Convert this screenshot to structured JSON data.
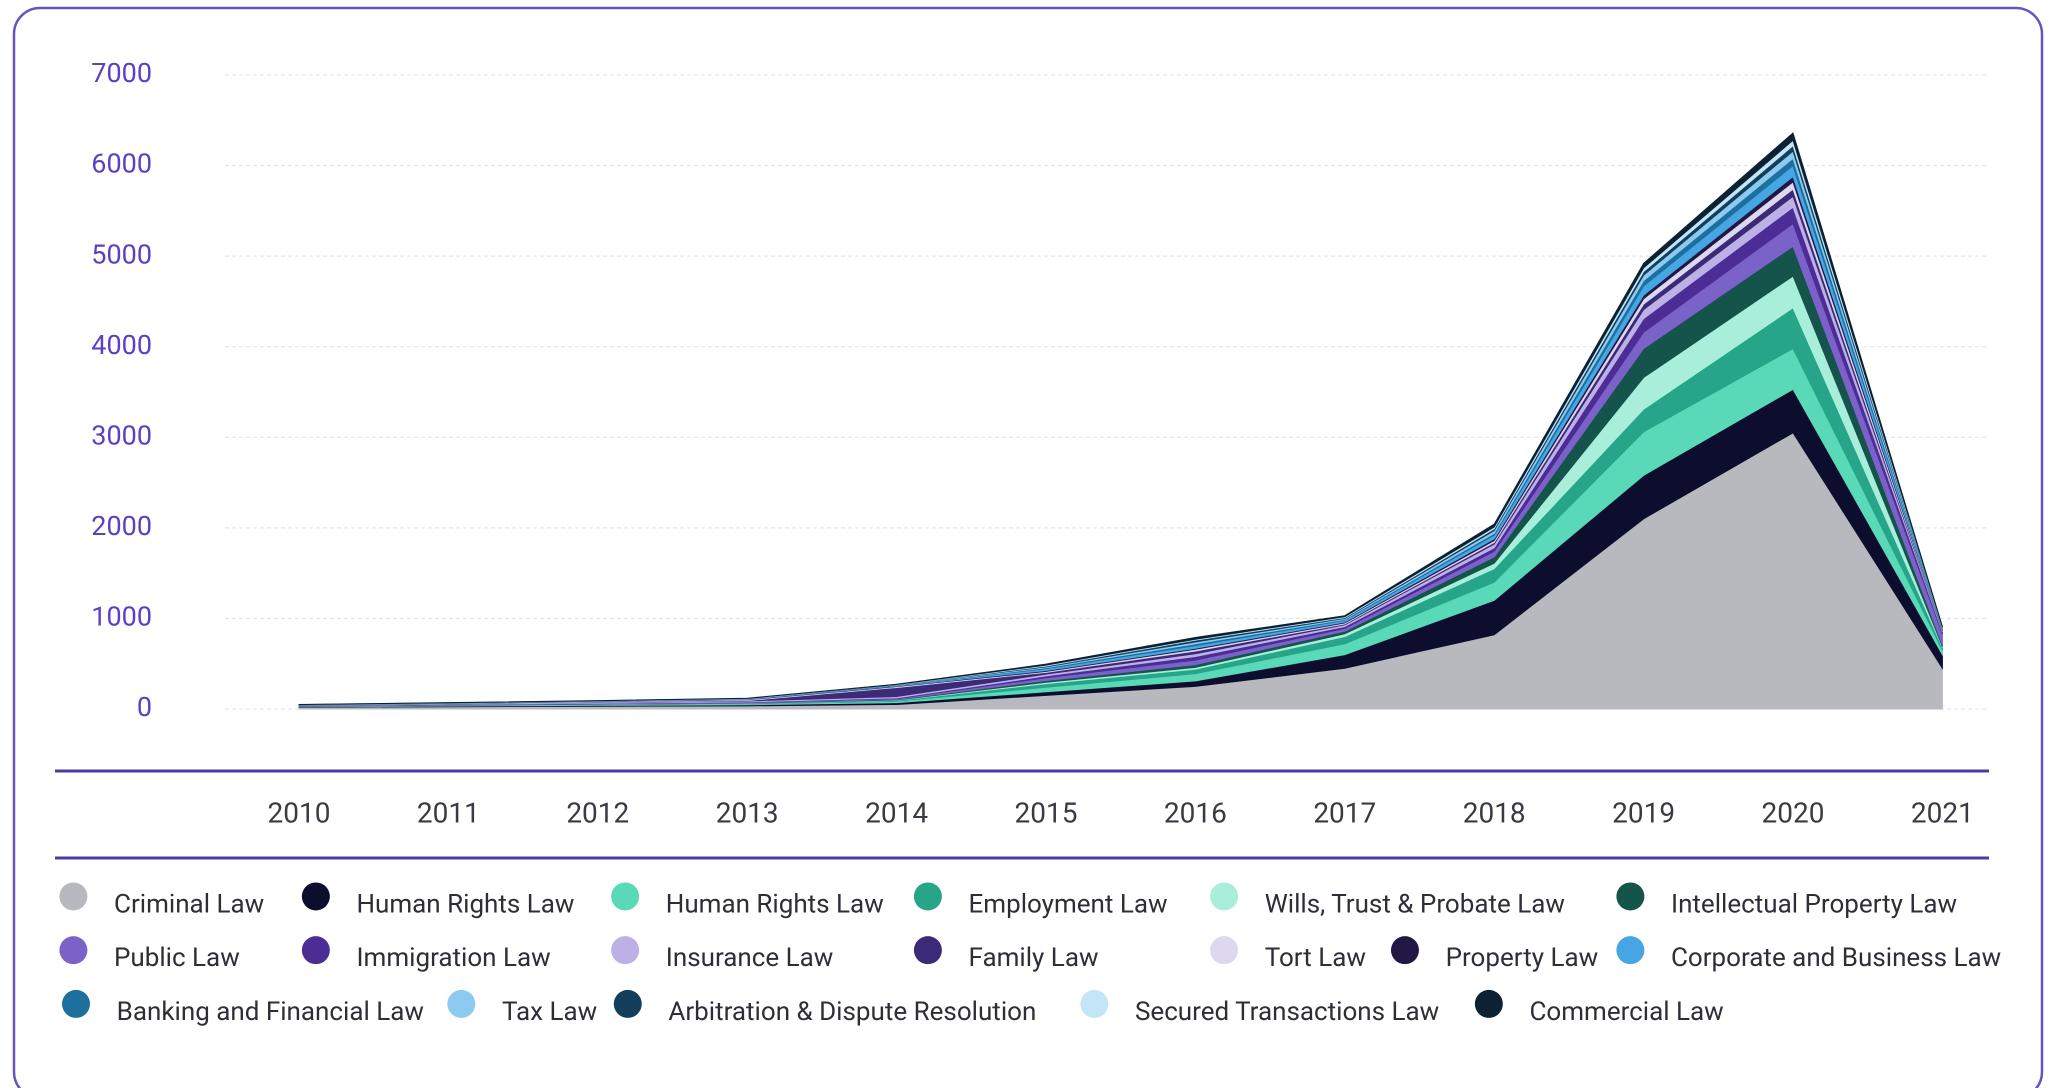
{
  "chart_data": {
    "type": "stacked_area",
    "categories": [
      "2010",
      "2011",
      "2012",
      "2013",
      "2014",
      "2015",
      "2016",
      "2017",
      "2018",
      "2019",
      "2020",
      "2021"
    ],
    "ylim": [
      0,
      7000
    ],
    "yticks": [
      0,
      1000,
      2000,
      3000,
      4000,
      5000,
      6000,
      7000
    ],
    "grid": true,
    "series": [
      {
        "name": "Criminal Law",
        "color": "#b8b8bf",
        "values": [
          20,
          25,
          30,
          35,
          50,
          150,
          250,
          450,
          820,
          2100,
          3050,
          450
        ]
      },
      {
        "name": "Human Rights Law",
        "color": "#0d0d2e",
        "values": [
          5,
          8,
          10,
          12,
          20,
          40,
          60,
          150,
          380,
          480,
          480,
          150
        ]
      },
      {
        "name": "Human Rights Law",
        "color": "#5ad9b8",
        "values": [
          3,
          5,
          6,
          8,
          15,
          50,
          80,
          120,
          200,
          480,
          450,
          50
        ]
      },
      {
        "name": "Employment Law",
        "color": "#26a588",
        "values": [
          2,
          3,
          4,
          5,
          10,
          40,
          50,
          80,
          150,
          250,
          450,
          30
        ]
      },
      {
        "name": "Wills, Trust & Probate Law",
        "color": "#a8eedb",
        "values": [
          1,
          2,
          2,
          3,
          5,
          15,
          20,
          30,
          60,
          350,
          350,
          10
        ]
      },
      {
        "name": "Intellectual Property Law",
        "color": "#15544a",
        "values": [
          1,
          2,
          2,
          3,
          5,
          20,
          30,
          30,
          70,
          320,
          330,
          20
        ]
      },
      {
        "name": "Public Law",
        "color": "#7b62c9",
        "values": [
          3,
          4,
          6,
          8,
          10,
          30,
          50,
          30,
          60,
          180,
          250,
          120
        ]
      },
      {
        "name": "Immigration Law",
        "color": "#4c2d96",
        "values": [
          2,
          3,
          4,
          5,
          8,
          20,
          40,
          20,
          40,
          150,
          180,
          20
        ]
      },
      {
        "name": "Insurance Law",
        "color": "#bcb0e4",
        "values": [
          3,
          5,
          8,
          10,
          15,
          20,
          30,
          20,
          40,
          100,
          120,
          10
        ]
      },
      {
        "name": "Family Law",
        "color": "#3b2a78",
        "values": [
          1,
          2,
          3,
          5,
          100,
          20,
          30,
          10,
          20,
          60,
          80,
          5
        ]
      },
      {
        "name": "Tort Law",
        "color": "#ddd8f0",
        "values": [
          2,
          3,
          5,
          8,
          10,
          10,
          20,
          10,
          20,
          60,
          80,
          5
        ]
      },
      {
        "name": "Property Law",
        "color": "#221845",
        "values": [
          1,
          1,
          2,
          3,
          5,
          10,
          10,
          10,
          20,
          40,
          60,
          5
        ]
      },
      {
        "name": "Corporate and Business Law",
        "color": "#46a6e4",
        "values": [
          1,
          2,
          3,
          4,
          5,
          20,
          30,
          20,
          40,
          100,
          120,
          10
        ]
      },
      {
        "name": "Banking and Financial Law",
        "color": "#1d6f9e",
        "values": [
          1,
          1,
          2,
          2,
          3,
          10,
          20,
          10,
          20,
          60,
          80,
          5
        ]
      },
      {
        "name": "Tax Law",
        "color": "#8ccaf0",
        "values": [
          1,
          1,
          2,
          2,
          3,
          10,
          20,
          10,
          30,
          60,
          80,
          5
        ]
      },
      {
        "name": "Arbitration & Dispute Resolution",
        "color": "#123f5c",
        "values": [
          1,
          1,
          1,
          2,
          3,
          10,
          20,
          10,
          20,
          40,
          60,
          5
        ]
      },
      {
        "name": "Secured Transactions Law",
        "color": "#c4e5f7",
        "values": [
          1,
          1,
          1,
          2,
          3,
          10,
          10,
          10,
          20,
          40,
          60,
          5
        ]
      },
      {
        "name": "Commercial Law",
        "color": "#0c2233",
        "values": [
          1,
          1,
          1,
          2,
          3,
          10,
          20,
          10,
          30,
          50,
          80,
          5
        ]
      }
    ]
  }
}
